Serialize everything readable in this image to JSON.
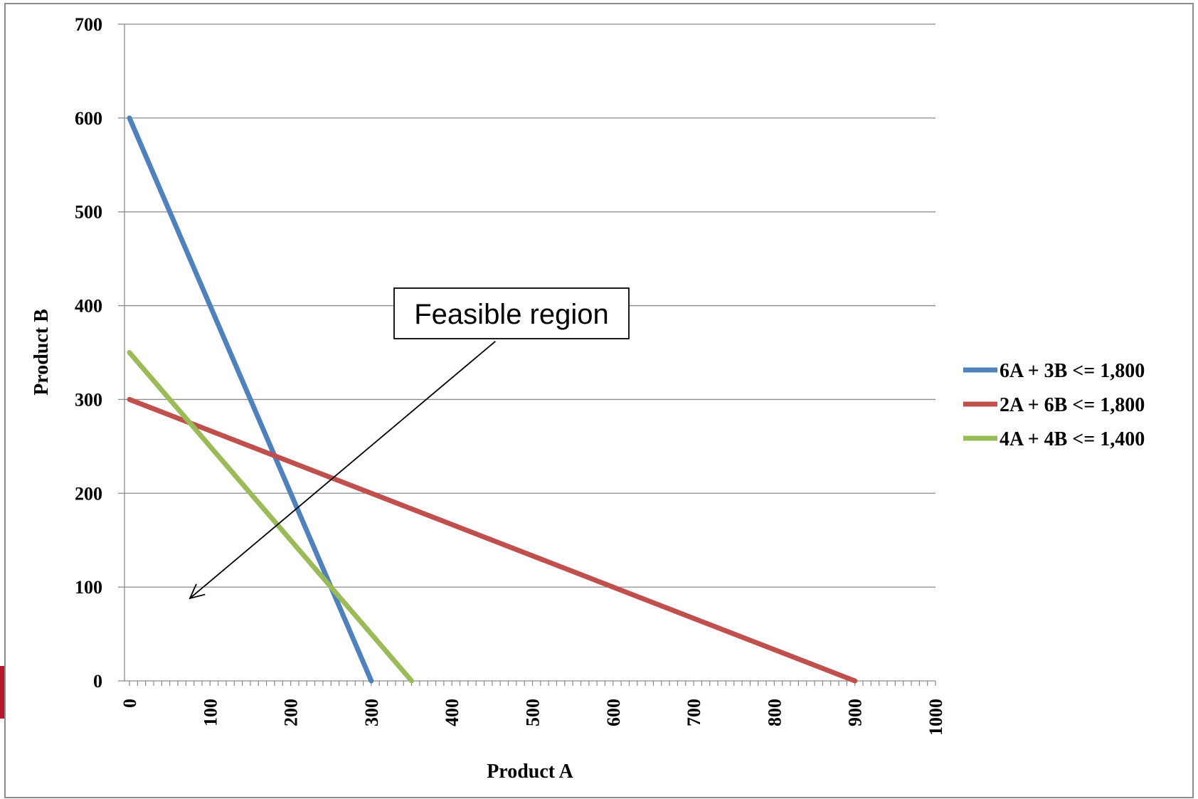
{
  "chart_data": {
    "type": "line",
    "title": "",
    "xlabel": "Product A",
    "ylabel": "Product B",
    "xlim": [
      0,
      1000
    ],
    "ylim": [
      0,
      700
    ],
    "x_ticks": [
      0,
      100,
      200,
      300,
      400,
      500,
      600,
      700,
      800,
      900,
      1000
    ],
    "y_ticks": [
      0,
      100,
      200,
      300,
      400,
      500,
      600,
      700
    ],
    "grid": "horizontal",
    "legend_position": "right",
    "series": [
      {
        "name": "6A + 3B <= 1,800",
        "color": "#4f81bd",
        "points": [
          [
            0,
            600
          ],
          [
            300,
            0
          ]
        ]
      },
      {
        "name": "2A + 6B <= 1,800",
        "color": "#c0504d",
        "points": [
          [
            0,
            300
          ],
          [
            900,
            0
          ]
        ]
      },
      {
        "name": "4A + 4B <= 1,400",
        "color": "#9bbb59",
        "points": [
          [
            0,
            350
          ],
          [
            350,
            0
          ]
        ]
      }
    ],
    "annotations": [
      {
        "text": "Feasible region",
        "arrow_from": [
          454,
          362
        ],
        "arrow_to": [
          75,
          88
        ]
      }
    ]
  }
}
